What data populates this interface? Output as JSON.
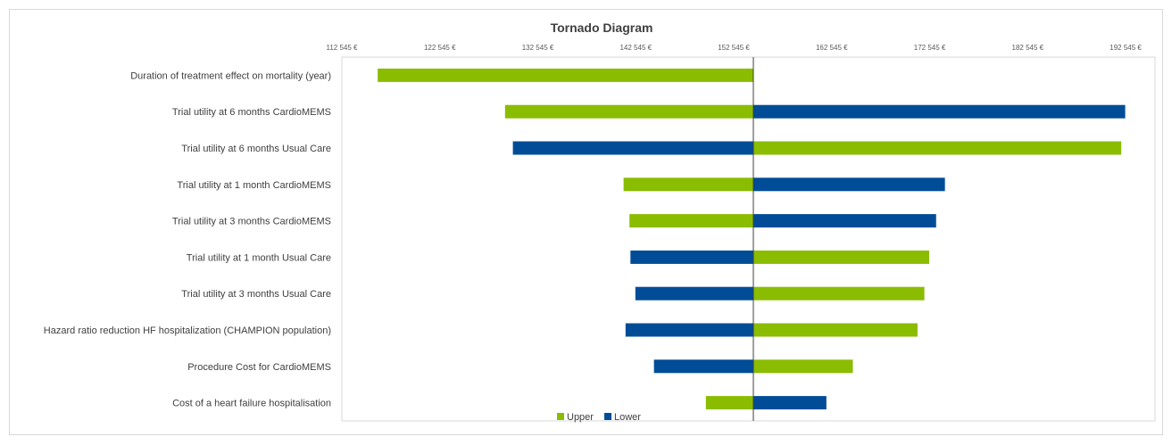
{
  "chart_data": {
    "type": "bar",
    "orientation": "horizontal",
    "title": "Tornado Diagram",
    "base_value": 154545,
    "xlim": [
      112545,
      195545
    ],
    "xticks": [
      112545,
      122545,
      132545,
      142545,
      152545,
      162545,
      172545,
      182545,
      192545
    ],
    "xtick_labels": [
      "112 545 €",
      "122 545 €",
      "132 545 €",
      "142 545 €",
      "152 545 €",
      "162 545 €",
      "172 545 €",
      "182 545 €",
      "192 545 €"
    ],
    "categories": [
      "Duration of treatment effect on mortality (year)",
      "Trial utility at 6 months CardioMEMS",
      "Trial utility at 6 months Usual Care",
      "Trial utility at 1 month CardioMEMS",
      "Trial utility at 3 months CardioMEMS",
      "Trial utility at 1 month Usual Care",
      "Trial utility at 3 months Usual Care",
      "Hazard ratio reduction HF hospitalization (CHAMPION population)",
      "Procedure Cost for CardioMEMS",
      "Cost of a heart failure hospitalisation"
    ],
    "series": [
      {
        "name": "Upper",
        "color": "#8abc00",
        "values": [
          116200,
          129200,
          192100,
          141300,
          141900,
          172500,
          172000,
          171300,
          164700,
          149700
        ]
      },
      {
        "name": "Lower",
        "color": "#004c97",
        "values": [
          154545,
          192500,
          130000,
          174100,
          173200,
          142000,
          142500,
          141500,
          144400,
          162000
        ]
      }
    ],
    "legend_position": "bottom-center",
    "grid": false
  }
}
